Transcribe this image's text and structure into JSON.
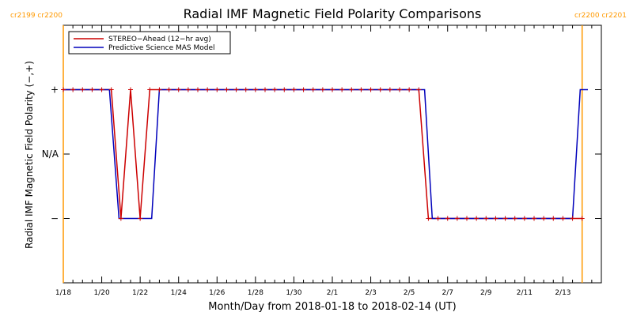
{
  "chart_data": {
    "type": "line",
    "title": "Radial IMF Magnetic Field Polarity Comparisons",
    "xlabel": "Month/Day from 2018-01-18 to 2018-02-14 (UT)",
    "ylabel": "Radial IMF Magnetic Field Polarity (−,+)",
    "xlim": [
      0,
      28
    ],
    "ylim": [
      -2,
      2
    ],
    "x_ticks": [
      {
        "x": 0,
        "label": "1/18"
      },
      {
        "x": 2,
        "label": "1/20"
      },
      {
        "x": 4,
        "label": "1/22"
      },
      {
        "x": 6,
        "label": "1/24"
      },
      {
        "x": 8,
        "label": "1/26"
      },
      {
        "x": 10,
        "label": "1/28"
      },
      {
        "x": 12,
        "label": "1/30"
      },
      {
        "x": 14,
        "label": "2/1"
      },
      {
        "x": 16,
        "label": "2/3"
      },
      {
        "x": 18,
        "label": "2/5"
      },
      {
        "x": 20,
        "label": "2/7"
      },
      {
        "x": 22,
        "label": "2/9"
      },
      {
        "x": 24,
        "label": "2/11"
      },
      {
        "x": 26,
        "label": "2/13"
      }
    ],
    "y_ticks": [
      {
        "y": 1,
        "label": "+"
      },
      {
        "y": 0,
        "label": "N/A"
      },
      {
        "y": -1,
        "label": "−"
      }
    ],
    "carrington_markers": [
      {
        "x": 0.0,
        "labels": [
          "cr2199",
          "cr2200"
        ],
        "side": "left"
      },
      {
        "x": 27.0,
        "labels": [
          "cr2200",
          "cr2201"
        ],
        "side": "right"
      }
    ],
    "legend_position": "top-left",
    "series": [
      {
        "name": "STEREO−Ahead (12−hr avg)",
        "color": "#cc0000",
        "markers": true,
        "points": [
          [
            0,
            1
          ],
          [
            0.5,
            1
          ],
          [
            1,
            1
          ],
          [
            1.5,
            1
          ],
          [
            2,
            1
          ],
          [
            2.5,
            1
          ],
          [
            3,
            -1
          ],
          [
            3.5,
            1
          ],
          [
            4,
            -1
          ],
          [
            4.5,
            1
          ],
          [
            5,
            1
          ],
          [
            5.5,
            1
          ],
          [
            6,
            1
          ],
          [
            6.5,
            1
          ],
          [
            7,
            1
          ],
          [
            7.5,
            1
          ],
          [
            8,
            1
          ],
          [
            8.5,
            1
          ],
          [
            9,
            1
          ],
          [
            9.5,
            1
          ],
          [
            10,
            1
          ],
          [
            10.5,
            1
          ],
          [
            11,
            1
          ],
          [
            11.5,
            1
          ],
          [
            12,
            1
          ],
          [
            12.5,
            1
          ],
          [
            13,
            1
          ],
          [
            13.5,
            1
          ],
          [
            14,
            1
          ],
          [
            14.5,
            1
          ],
          [
            15,
            1
          ],
          [
            15.5,
            1
          ],
          [
            16,
            1
          ],
          [
            16.5,
            1
          ],
          [
            17,
            1
          ],
          [
            17.5,
            1
          ],
          [
            18,
            1
          ],
          [
            18.5,
            1
          ],
          [
            19,
            -1
          ],
          [
            19.5,
            -1
          ],
          [
            20,
            -1
          ],
          [
            20.5,
            -1
          ],
          [
            21,
            -1
          ],
          [
            21.5,
            -1
          ],
          [
            22,
            -1
          ],
          [
            22.5,
            -1
          ],
          [
            23,
            -1
          ],
          [
            23.5,
            -1
          ],
          [
            24,
            -1
          ],
          [
            24.5,
            -1
          ],
          [
            25,
            -1
          ],
          [
            25.5,
            -1
          ],
          [
            26,
            -1
          ],
          [
            26.5,
            -1
          ],
          [
            27,
            -1
          ]
        ]
      },
      {
        "name": "Predictive Science MAS Model",
        "color": "#0000bb",
        "markers": false,
        "points": [
          [
            0,
            1
          ],
          [
            2.4,
            1
          ],
          [
            2.9,
            -1
          ],
          [
            4.6,
            -1
          ],
          [
            5.0,
            1
          ],
          [
            18.8,
            1
          ],
          [
            19.2,
            -1
          ],
          [
            26.5,
            -1
          ],
          [
            26.9,
            1
          ],
          [
            27.3,
            1
          ]
        ]
      }
    ]
  }
}
